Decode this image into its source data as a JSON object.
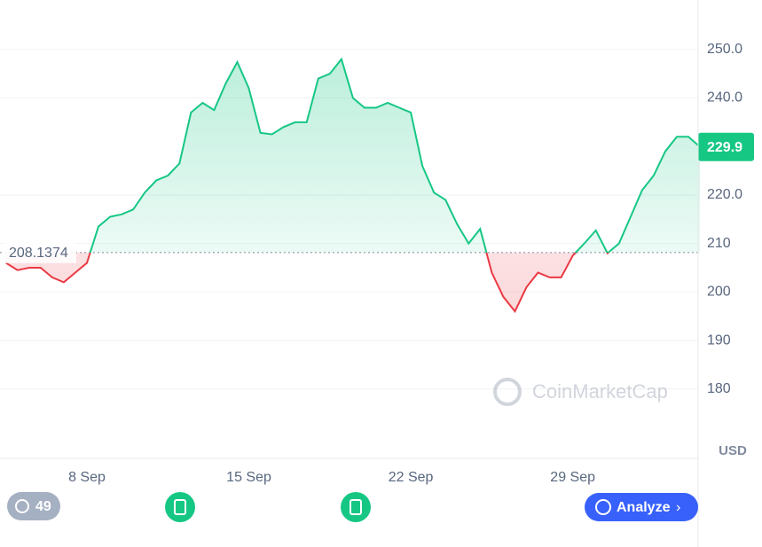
{
  "chart_data": {
    "type": "line",
    "categories": [
      null,
      null,
      null,
      null,
      null,
      null,
      null,
      "8 Sep",
      null,
      null,
      null,
      null,
      null,
      null,
      null,
      null,
      null,
      null,
      null,
      null,
      null,
      "15 Sep",
      null,
      null,
      null,
      null,
      null,
      null,
      null,
      null,
      null,
      null,
      null,
      null,
      null,
      "22 Sep",
      null,
      null,
      null,
      null,
      null,
      null,
      null,
      null,
      null,
      null,
      null,
      null,
      null,
      "29 Sep",
      null,
      null,
      null,
      null,
      null,
      null,
      null,
      null,
      null,
      null,
      null
    ],
    "values": [
      206,
      204.5,
      205,
      205,
      203,
      202,
      204,
      206,
      213.5,
      215.5,
      216,
      217,
      220.5,
      223,
      224,
      226.5,
      237,
      239,
      237.5,
      243,
      247.4,
      242,
      232.8,
      232.5,
      234,
      235,
      235,
      244,
      245,
      248,
      240,
      238,
      238,
      239,
      238,
      237,
      226,
      220.5,
      219,
      214,
      210,
      213,
      204,
      199,
      196,
      201,
      204,
      203,
      203,
      207.5,
      210,
      212.7,
      208,
      210,
      215.5,
      221,
      224,
      229,
      232,
      232,
      229.9
    ],
    "color": "#16c784",
    "down_color": "#ea3943",
    "baseline": 208.1374,
    "current_value": 229.9,
    "ylim": [
      165.7,
      260.2
    ],
    "yticks": [
      {
        "value": 250,
        "label": "250.0"
      },
      {
        "value": 240,
        "label": "240.0"
      },
      {
        "value": 220,
        "label": "220.0"
      },
      210,
      200,
      190,
      180
    ],
    "grid": true,
    "currency": "USD",
    "watermark": "CoinMarketCap"
  },
  "controls": {
    "history_count": 49,
    "analyze": "Analyze"
  }
}
